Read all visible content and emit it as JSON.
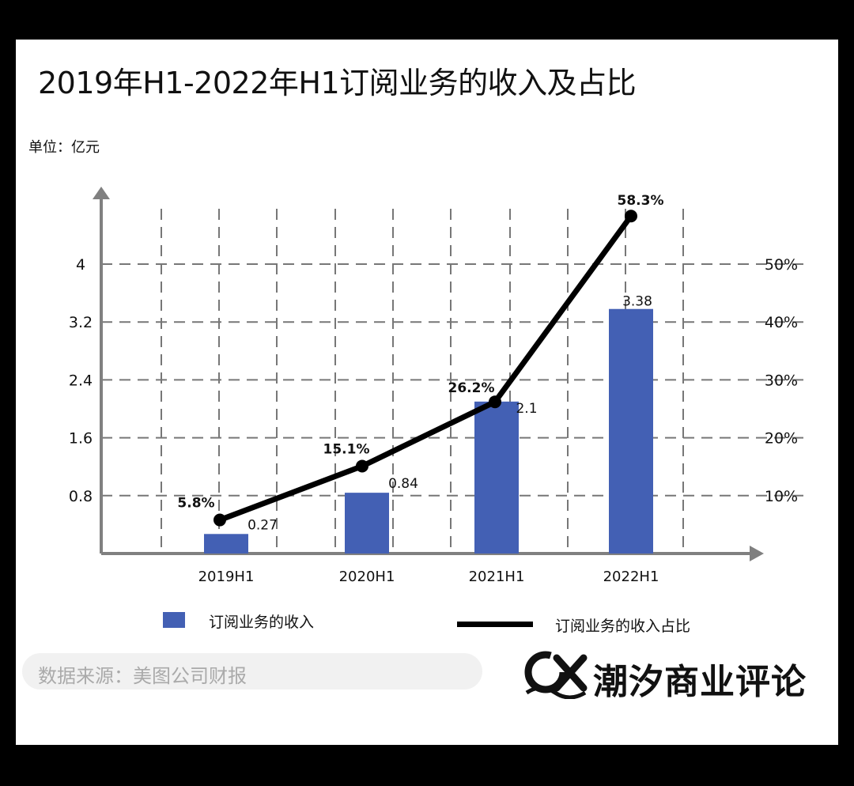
{
  "title": "2019年H1-2022年H1订阅业务的收入及占比",
  "unit": "单位：亿元",
  "chart_data": {
    "type": "bar",
    "categories": [
      "2019H1",
      "2020H1",
      "2021H1",
      "2022H1"
    ],
    "series": [
      {
        "name": "订阅业务的收入",
        "type": "bar",
        "axis": "left",
        "values": [
          0.27,
          0.84,
          2.1,
          3.38
        ],
        "labels": [
          "0.27",
          "0.84",
          "2.1",
          "3.38"
        ]
      },
      {
        "name": "订阅业务的收入占比",
        "type": "line",
        "axis": "right",
        "values": [
          5.8,
          15.1,
          26.2,
          58.3
        ],
        "labels": [
          "5.8%",
          "15.1%",
          "26.2%",
          "58.3%"
        ]
      }
    ],
    "y_left": {
      "ticks": [
        "0.8",
        "1.6",
        "2.4",
        "3.2",
        "4"
      ],
      "tick_values": [
        0.8,
        1.6,
        2.4,
        3.2,
        4.0
      ]
    },
    "y_right": {
      "ticks": [
        "10%",
        "20%",
        "30%",
        "40%",
        "50%"
      ],
      "tick_values": [
        10,
        20,
        30,
        40,
        50
      ]
    },
    "grid": true,
    "legend": "bottom",
    "colors": {
      "bar": "#4360b4",
      "line": "#000000"
    }
  },
  "source": "数据来源：美图公司财报",
  "brand": {
    "name": "潮汐商业评论",
    "logo_text": "CX"
  }
}
